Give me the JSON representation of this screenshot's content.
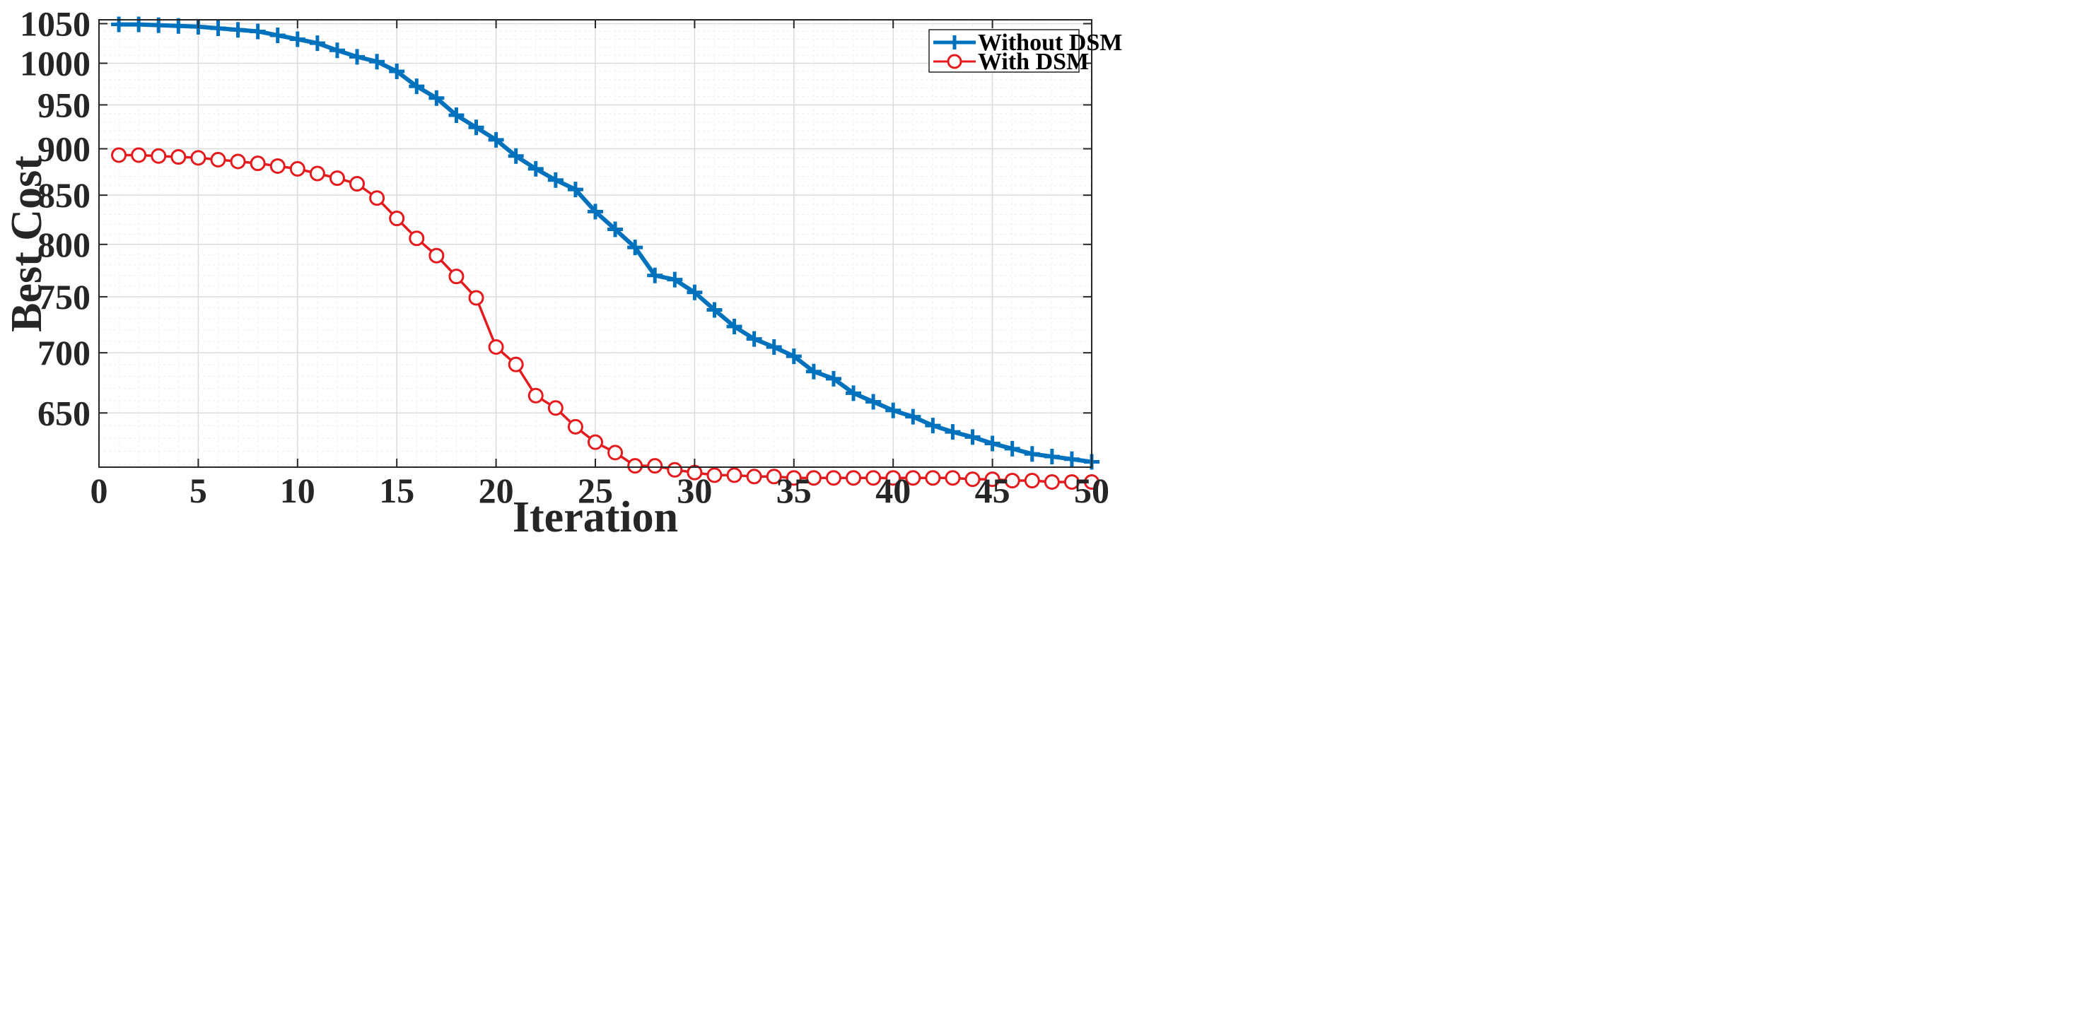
{
  "colors": {
    "series_without": "#0072BD",
    "series_with": "#E41A1C",
    "grid_major": "#dcdcdc",
    "grid_minor": "#eeeeee",
    "axis": "#262626"
  },
  "chart_data": {
    "type": "line",
    "title": "",
    "xlabel": "Iteration",
    "ylabel": "Best Cost",
    "xlim": [
      0,
      50
    ],
    "ylim": [
      608,
      1055
    ],
    "yscale": "log",
    "grid": true,
    "minor_grid": true,
    "legend_position": "top-right",
    "xticks": [
      0,
      5,
      10,
      15,
      20,
      25,
      30,
      35,
      40,
      45,
      50
    ],
    "xtick_labels": [
      "0",
      "5",
      "10",
      "15",
      "20",
      "25",
      "30",
      "35",
      "40",
      "45",
      "50"
    ],
    "yticks": [
      650,
      700,
      750,
      800,
      850,
      900,
      950,
      1000,
      1050
    ],
    "ytick_labels": [
      "650",
      "700",
      "750",
      "800",
      "850",
      "900",
      "950",
      "1000",
      "1050"
    ],
    "x": [
      1,
      2,
      3,
      4,
      5,
      6,
      7,
      8,
      9,
      10,
      11,
      12,
      13,
      14,
      15,
      16,
      17,
      18,
      19,
      20,
      21,
      22,
      23,
      24,
      25,
      26,
      27,
      28,
      29,
      30,
      31,
      32,
      33,
      34,
      35,
      36,
      37,
      38,
      39,
      40,
      41,
      42,
      43,
      44,
      45,
      46,
      47,
      48,
      49,
      50
    ],
    "series": [
      {
        "name": "Without DSM",
        "marker": "plus",
        "values": [
          1049,
          1049,
          1048,
          1047,
          1046,
          1044,
          1042,
          1040,
          1035,
          1030,
          1025,
          1016,
          1008,
          1002,
          990,
          972,
          958,
          938,
          924,
          910,
          892,
          878,
          866,
          856,
          833,
          815,
          797,
          770,
          766,
          754,
          738,
          723,
          712,
          705,
          697,
          684,
          678,
          666,
          659,
          652,
          647,
          640,
          635,
          631,
          626,
          622,
          618,
          616,
          614,
          612
        ]
      },
      {
        "name": "With DSM",
        "marker": "circle",
        "values": [
          893,
          893,
          892,
          891,
          890,
          888,
          886,
          884,
          881,
          878,
          873,
          868,
          862,
          847,
          826,
          806,
          789,
          769,
          749,
          705,
          690,
          664,
          654,
          639,
          627,
          619,
          609,
          609,
          606,
          604,
          602,
          602,
          601,
          601,
          600,
          600,
          600,
          600,
          600,
          600,
          600,
          600,
          600,
          599,
          599,
          598,
          598,
          597,
          597,
          597
        ]
      }
    ]
  }
}
